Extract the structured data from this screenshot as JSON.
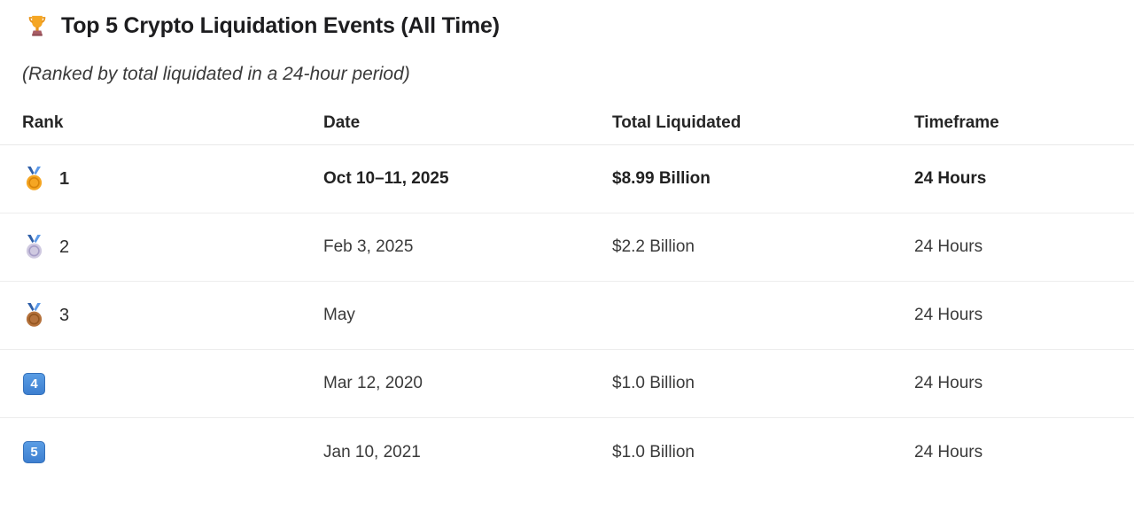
{
  "title": {
    "icon": "trophy",
    "text": "Top 5 Crypto Liquidation Events (All Time)"
  },
  "subtitle": "(Ranked by total liquidated in a 24-hour period)",
  "table": {
    "columns": [
      "Rank",
      "Date",
      "Total Liquidated",
      "Timeframe"
    ],
    "rows": [
      {
        "rank_icon": "gold-medal",
        "rank_label": "1",
        "date": "Oct 10–11, 2025",
        "total": "$8.99 Billion",
        "timeframe": "24 Hours",
        "emphasis": true
      },
      {
        "rank_icon": "silver-medal",
        "rank_label": "2",
        "date": "Feb 3, 2025",
        "total": "$2.2 Billion",
        "timeframe": "24 Hours",
        "emphasis": false
      },
      {
        "rank_icon": "bronze-medal",
        "rank_label": "3",
        "date": "May",
        "total": "",
        "timeframe": "24 Hours",
        "emphasis": false
      },
      {
        "rank_icon": "keycap-4",
        "rank_label": "",
        "date": "Mar 12, 2020",
        "total": "$1.0 Billion",
        "timeframe": "24 Hours",
        "emphasis": false
      },
      {
        "rank_icon": "keycap-5",
        "rank_label": "",
        "date": "Jan 10, 2021",
        "total": "$1.0 Billion",
        "timeframe": "24 Hours",
        "emphasis": false
      }
    ]
  },
  "colors": {
    "title_text": "#1d1d1f",
    "body_text": "#3a3a3a",
    "separator": "#ededed",
    "gold": "#f5a623",
    "silver": "#cfc9e0",
    "bronze": "#b5723c",
    "ribbon_blue": "#4a86d8",
    "keycap_blue": "#3d7fd0"
  }
}
